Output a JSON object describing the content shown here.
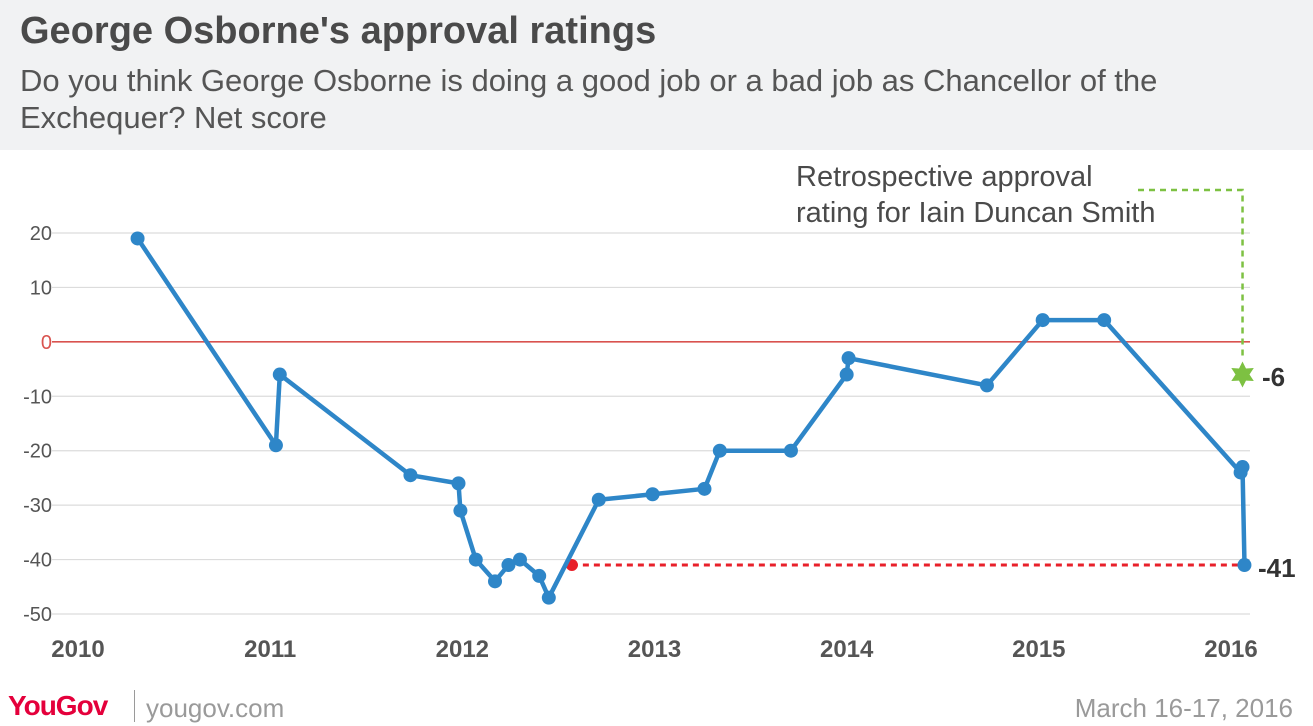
{
  "header": {
    "title": "George Osborne's approval ratings",
    "subtitle": "Do you think George Osborne is doing a good job or a bad job as Chancellor of the Exchequer? Net score"
  },
  "chart_data": {
    "type": "line",
    "title": "George Osborne's approval ratings",
    "subtitle": "Do you think George Osborne is doing a good job or a bad job as Chancellor of the Exchequer? Net score",
    "xlabel": "",
    "ylabel": "",
    "xlim": [
      2010,
      2016.2
    ],
    "ylim": [
      -50,
      22
    ],
    "x_ticks": [
      2010,
      2011,
      2012,
      2013,
      2014,
      2015,
      2016
    ],
    "x_tick_labels": [
      "2010",
      "2011",
      "2012",
      "2013",
      "2014",
      "2015",
      "2016"
    ],
    "y_ticks": [
      20,
      10,
      0,
      -10,
      -20,
      -30,
      -40,
      -50
    ],
    "y_tick_labels": [
      "20",
      "10",
      "0",
      "-10",
      "-20",
      "-30",
      "-40",
      "-50"
    ],
    "grid": true,
    "zero_line": true,
    "series": [
      {
        "color": "#2e86c8",
        "points": [
          {
            "x": 2010.31,
            "y": 19
          },
          {
            "x": 2011.03,
            "y": -19
          },
          {
            "x": 2011.05,
            "y": -6
          },
          {
            "x": 2011.73,
            "y": -24.5
          },
          {
            "x": 2011.98,
            "y": -26
          },
          {
            "x": 2011.99,
            "y": -31
          },
          {
            "x": 2012.07,
            "y": -40
          },
          {
            "x": 2012.17,
            "y": -44
          },
          {
            "x": 2012.24,
            "y": -41
          },
          {
            "x": 2012.3,
            "y": -40
          },
          {
            "x": 2012.4,
            "y": -43
          },
          {
            "x": 2012.45,
            "y": -47
          },
          {
            "x": 2012.71,
            "y": -29
          },
          {
            "x": 2012.99,
            "y": -28
          },
          {
            "x": 2013.26,
            "y": -27
          },
          {
            "x": 2013.34,
            "y": -20
          },
          {
            "x": 2013.71,
            "y": -20
          },
          {
            "x": 2014.0,
            "y": -6
          },
          {
            "x": 2014.01,
            "y": -3
          },
          {
            "x": 2014.73,
            "y": -8
          },
          {
            "x": 2015.02,
            "y": 4
          },
          {
            "x": 2015.34,
            "y": 4
          },
          {
            "x": 2016.05,
            "y": -24
          },
          {
            "x": 2016.06,
            "y": -23
          },
          {
            "x": 2016.07,
            "y": -41
          }
        ]
      }
    ],
    "reference_line": {
      "y": -41,
      "x_start": 2012.57,
      "x_end": 2016.07,
      "color": "#e8202a",
      "label": "-41"
    },
    "iain_duncan_smith": {
      "x": 2016.06,
      "y": -6,
      "color": "#7dc142",
      "label": "-6",
      "annotation": "Retrospective approval rating for Iain Duncan Smith",
      "annotation_line1": "Retrospective approval",
      "annotation_line2": "rating for Iain Duncan Smith"
    },
    "colors": {
      "line": "#2e86c8",
      "zero_line": "#d9534f",
      "grid": "#dcdcdc",
      "reference": "#e8202a",
      "highlight": "#7dc142",
      "axis_text": "#555555"
    }
  },
  "footer": {
    "brand": "YouGov",
    "site": "yougov.com",
    "date": "March 16-17, 2016"
  }
}
